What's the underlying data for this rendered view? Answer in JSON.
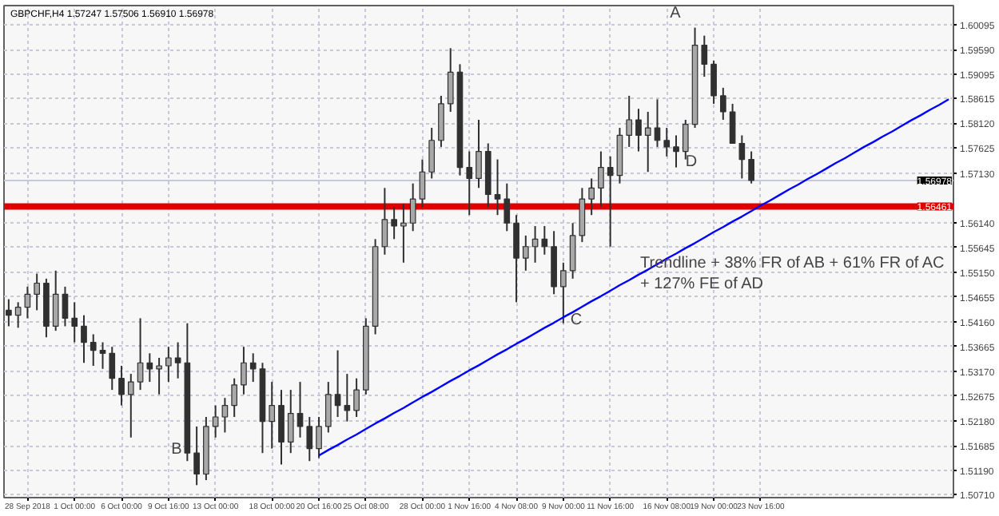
{
  "chart_data": {
    "type": "candlestick",
    "title": "GBPCHF,H4 1.57247 1.57506 1.56910 1.56978",
    "color": "#303030",
    "categories": [
      null,
      null,
      "28 Sep 2018",
      null,
      null,
      null,
      null,
      "1 Oct 00:00",
      null,
      null,
      null,
      null,
      "6 Oct 00:00",
      null,
      null,
      null,
      null,
      "9 Oct 16:00",
      null,
      null,
      null,
      null,
      "13 Oct 00:00",
      null,
      null,
      null,
      null,
      null,
      "18 Oct 00:00",
      null,
      null,
      null,
      null,
      "20 Oct 16:00",
      null,
      null,
      null,
      null,
      "25 Oct 08:00",
      null,
      null,
      null,
      null,
      null,
      "28 Oct 00:00",
      null,
      null,
      null,
      null,
      "1 Nov 16:00",
      null,
      null,
      null,
      null,
      "4 Nov 08:00",
      null,
      null,
      null,
      null,
      "9 Nov 00:00",
      null,
      null,
      null,
      null,
      "11 Nov 16:00",
      null,
      null,
      null,
      null,
      null,
      "16 Nov 08:00",
      null,
      null,
      null,
      null,
      "19 Nov 00:00",
      null,
      null,
      null,
      null,
      "23 Nov 16:00",
      null,
      null,
      null,
      null,
      null,
      null,
      null,
      null,
      null,
      null,
      null,
      null,
      null,
      null,
      null,
      null,
      null,
      null,
      null,
      null
    ],
    "ohlc": [
      [
        1.5439,
        1.5461,
        1.5407,
        1.5429
      ],
      [
        1.5429,
        1.5455,
        1.5404,
        1.5445
      ],
      [
        1.5445,
        1.5486,
        1.5423,
        1.5471
      ],
      [
        1.5471,
        1.5512,
        1.5439,
        1.5493
      ],
      [
        1.5493,
        1.5502,
        1.5385,
        1.5407
      ],
      [
        1.5407,
        1.5518,
        1.5398,
        1.5471
      ],
      [
        1.5471,
        1.5486,
        1.5407,
        1.5423
      ],
      [
        1.5423,
        1.5455,
        1.5375,
        1.5407
      ],
      [
        1.5407,
        1.5429,
        1.5334,
        1.5375
      ],
      [
        1.5375,
        1.5391,
        1.5328,
        1.5359
      ],
      [
        1.5359,
        1.5375,
        1.5322,
        1.5353
      ],
      [
        1.5353,
        1.5366,
        1.528,
        1.5303
      ],
      [
        1.5303,
        1.5328,
        1.5249,
        1.5271
      ],
      [
        1.5271,
        1.5312,
        1.5185,
        1.5296
      ],
      [
        1.5296,
        1.5423,
        1.528,
        1.5334
      ],
      [
        1.5334,
        1.5353,
        1.5296,
        1.5322
      ],
      [
        1.5322,
        1.5344,
        1.5271,
        1.5328
      ],
      [
        1.5328,
        1.5366,
        1.5296,
        1.5344
      ],
      [
        1.5344,
        1.5375,
        1.5303,
        1.5334
      ],
      [
        1.5334,
        1.5413,
        1.5138,
        1.5154
      ],
      [
        1.5154,
        1.5207,
        1.509,
        1.5112
      ],
      [
        1.5112,
        1.5226,
        1.51,
        1.5207
      ],
      [
        1.5207,
        1.5249,
        1.5185,
        1.5226
      ],
      [
        1.5226,
        1.5264,
        1.5195,
        1.5249
      ],
      [
        1.5249,
        1.5303,
        1.5226,
        1.529
      ],
      [
        1.529,
        1.5366,
        1.5271,
        1.5334
      ],
      [
        1.5334,
        1.5353,
        1.5296,
        1.5322
      ],
      [
        1.5322,
        1.5334,
        1.5154,
        1.5217
      ],
      [
        1.5217,
        1.5296,
        1.5163,
        1.5249
      ],
      [
        1.5249,
        1.528,
        1.5131,
        1.5176
      ],
      [
        1.5176,
        1.528,
        1.5154,
        1.5233
      ],
      [
        1.5233,
        1.5296,
        1.5185,
        1.5207
      ],
      [
        1.5207,
        1.5226,
        1.5138,
        1.5163
      ],
      [
        1.5163,
        1.5226,
        1.5144,
        1.5207
      ],
      [
        1.5207,
        1.5296,
        1.5195,
        1.5271
      ],
      [
        1.5271,
        1.5359,
        1.5226,
        1.5249
      ],
      [
        1.5249,
        1.5312,
        1.5217,
        1.5239
      ],
      [
        1.5239,
        1.5303,
        1.5226,
        1.528
      ],
      [
        1.528,
        1.5423,
        1.5271,
        1.5407
      ],
      [
        1.5407,
        1.5581,
        1.5391,
        1.5566
      ],
      [
        1.5566,
        1.5683,
        1.555,
        1.562
      ],
      [
        1.562,
        1.5645,
        1.5581,
        1.5607
      ],
      [
        1.5607,
        1.5651,
        1.5534,
        1.5613
      ],
      [
        1.5613,
        1.5692,
        1.5597,
        1.5661
      ],
      [
        1.5661,
        1.574,
        1.5645,
        1.5715
      ],
      [
        1.5715,
        1.5803,
        1.5702,
        1.5778
      ],
      [
        1.5778,
        1.5867,
        1.5765,
        1.5851
      ],
      [
        1.5851,
        1.5962,
        1.5835,
        1.5914
      ],
      [
        1.5914,
        1.593,
        1.5708,
        1.5724
      ],
      [
        1.5724,
        1.5756,
        1.5629,
        1.5702
      ],
      [
        1.5702,
        1.5819,
        1.5683,
        1.5756
      ],
      [
        1.5756,
        1.5772,
        1.5645,
        1.567
      ],
      [
        1.567,
        1.574,
        1.5629,
        1.5661
      ],
      [
        1.5661,
        1.5692,
        1.5597,
        1.5613
      ],
      [
        1.5613,
        1.5629,
        1.5455,
        1.5543
      ],
      [
        1.5543,
        1.5588,
        1.5518,
        1.5566
      ],
      [
        1.5566,
        1.5607,
        1.5534,
        1.5581
      ],
      [
        1.5581,
        1.5607,
        1.555,
        1.5566
      ],
      [
        1.5566,
        1.5597,
        1.5471,
        1.5486
      ],
      [
        1.5486,
        1.5534,
        1.5413,
        1.5518
      ],
      [
        1.5518,
        1.5613,
        1.5502,
        1.5588
      ],
      [
        1.5588,
        1.5683,
        1.5575,
        1.5661
      ],
      [
        1.5661,
        1.5702,
        1.5629,
        1.5683
      ],
      [
        1.5683,
        1.5756,
        1.5645,
        1.5724
      ],
      [
        1.5724,
        1.5746,
        1.5566,
        1.5708
      ],
      [
        1.5708,
        1.5803,
        1.5692,
        1.5788
      ],
      [
        1.5788,
        1.5867,
        1.5765,
        1.5819
      ],
      [
        1.5819,
        1.5841,
        1.5756,
        1.5788
      ],
      [
        1.5788,
        1.5835,
        1.5715,
        1.5803
      ],
      [
        1.5803,
        1.586,
        1.5765,
        1.5778
      ],
      [
        1.5778,
        1.5803,
        1.5746,
        1.5765
      ],
      [
        1.5765,
        1.5788,
        1.5724,
        1.5756
      ],
      [
        1.5756,
        1.5819,
        1.574,
        1.581
      ],
      [
        1.581,
        1.6003,
        1.5803,
        1.5968
      ],
      [
        1.5968,
        1.5987,
        1.5905,
        1.593
      ],
      [
        1.593,
        1.5937,
        1.5851,
        1.5867
      ],
      [
        1.5867,
        1.5883,
        1.5819,
        1.5835
      ],
      [
        1.5835,
        1.5851,
        1.5772,
        1.5772
      ],
      [
        1.5772,
        1.5788,
        1.5702,
        1.574
      ],
      [
        1.574,
        1.5756,
        1.5692,
        1.5698
      ],
      null,
      null,
      null,
      null,
      null,
      null,
      null,
      null,
      null,
      null,
      null,
      null,
      null,
      null,
      null,
      null,
      null,
      null,
      null,
      null,
      null
    ],
    "series": [
      {
        "type": "line",
        "color": "#0000ff",
        "values": [
          null,
          null,
          null,
          null,
          null,
          null,
          null,
          null,
          null,
          null,
          null,
          null,
          null,
          null,
          null,
          null,
          null,
          null,
          null,
          null,
          null,
          null,
          null,
          null,
          null,
          null,
          null,
          null,
          null,
          null,
          null,
          null,
          null,
          1.5149,
          1.516,
          1.517,
          1.5181,
          1.5191,
          1.5202,
          1.5213,
          1.5223,
          1.5234,
          1.5244,
          1.5255,
          1.5266,
          1.5276,
          1.5287,
          1.5298,
          1.5308,
          1.5319,
          1.5329,
          1.534,
          1.5351,
          1.5361,
          1.5372,
          1.5382,
          1.5393,
          1.5404,
          1.5414,
          1.5425,
          1.5435,
          1.5446,
          1.5457,
          1.5467,
          1.5478,
          1.5489,
          1.5499,
          1.551,
          1.552,
          1.5531,
          1.5542,
          1.5552,
          1.5563,
          1.5573,
          1.5584,
          1.5595,
          1.5605,
          1.5616,
          1.5626,
          1.5637,
          1.5648,
          1.5658,
          1.5669,
          1.568,
          1.569,
          1.5701,
          1.5711,
          1.5722,
          1.5733,
          1.5743,
          1.5754,
          1.5765,
          1.5775,
          1.5786,
          1.5796,
          1.5807,
          1.5818,
          1.5828,
          1.5839,
          1.5849,
          1.586
        ]
      }
    ],
    "ylim": [
      1.5065,
      1.6047
    ],
    "yticks": [
      {
        "value": 1.60095,
        "label": "1.60095"
      },
      {
        "value": 1.5959,
        "label": "1.59590"
      },
      {
        "value": 1.59095,
        "label": "1.59095"
      },
      {
        "value": 1.58615,
        "label": "1.58615"
      },
      {
        "value": 1.5812,
        "label": "1.58120"
      },
      {
        "value": 1.57625,
        "label": "1.57625"
      },
      {
        "value": 1.5713,
        "label": "1.57130"
      },
      {
        "value": 1.5614,
        "label": "1.56140"
      },
      {
        "value": 1.55645,
        "label": "1.55645"
      },
      {
        "value": 1.5515,
        "label": "1.55150"
      },
      {
        "value": 1.54655,
        "label": "1.54655"
      },
      {
        "value": 1.5416,
        "label": "1.54160"
      },
      {
        "value": 1.53665,
        "label": "1.53665"
      },
      {
        "value": 1.5317,
        "label": "1.53170"
      },
      {
        "value": 1.52675,
        "label": "1.52675"
      },
      {
        "value": 1.5218,
        "label": "1.52180"
      },
      {
        "value": 1.51685,
        "label": "1.51685"
      },
      {
        "value": 1.5119,
        "label": "1.51190"
      },
      {
        "value": 1.5071,
        "label": "1.50710"
      }
    ],
    "ref_lines": [
      {
        "axis": "y",
        "value": 1.56978,
        "label": "1.56978",
        "color": "#c8c8dc"
      },
      {
        "axis": "y",
        "value": 1.56461,
        "label": "1.56461",
        "color": "#e00000"
      }
    ],
    "annotations": [
      "A",
      "B",
      "C",
      "D",
      "Trendline + 38% FR of AB + 61% FR of AC\n+ 127% FE of AD"
    ],
    "grid": true
  }
}
